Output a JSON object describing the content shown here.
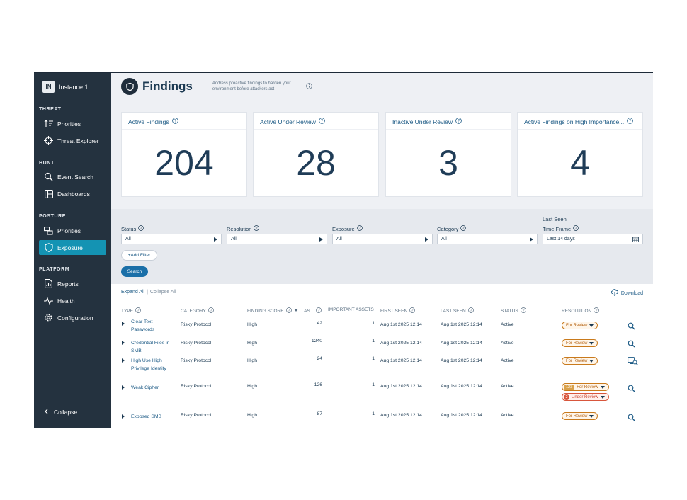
{
  "instance": {
    "badge": "IN",
    "name": "Instance 1"
  },
  "sidebar": {
    "sections": [
      {
        "title": "THREAT",
        "items": [
          {
            "label": "Priorities",
            "icon": "sort-priorities-icon"
          },
          {
            "label": "Threat Explorer",
            "icon": "crosshair-icon"
          }
        ]
      },
      {
        "title": "HUNT",
        "items": [
          {
            "label": "Event Search",
            "icon": "search-icon"
          },
          {
            "label": "Dashboards",
            "icon": "dashboard-icon"
          }
        ]
      },
      {
        "title": "POSTURE",
        "items": [
          {
            "label": "Priorities",
            "icon": "posture-priorities-icon"
          },
          {
            "label": "Exposure",
            "icon": "shield-icon",
            "active": true
          }
        ]
      },
      {
        "title": "PLATFORM",
        "items": [
          {
            "label": "Reports",
            "icon": "report-icon"
          },
          {
            "label": "Health",
            "icon": "health-icon"
          },
          {
            "label": "Configuration",
            "icon": "gear-icon"
          }
        ]
      }
    ],
    "collapse_label": "Collapse"
  },
  "header": {
    "title": "Findings",
    "subtitle": "Address proactive findings to harden your environment before attackers act"
  },
  "cards": [
    {
      "title": "Active Findings",
      "value": "204"
    },
    {
      "title": "Active Under Review",
      "value": "28"
    },
    {
      "title": "Inactive Under Review",
      "value": "3"
    },
    {
      "title": "Active Findings on High Importance...",
      "value": "4"
    }
  ],
  "filters": {
    "status": {
      "label": "Status",
      "value": "All"
    },
    "resolution": {
      "label": "Resolution",
      "value": "All"
    },
    "exposure": {
      "label": "Exposure",
      "value": "All"
    },
    "category": {
      "label": "Category",
      "value": "All"
    },
    "last_seen": {
      "label_top": "Last Seen",
      "label": "Time Frame",
      "value": "Last 14 days"
    },
    "add_filter": "+Add Filter",
    "search": "Search"
  },
  "toolbar": {
    "expand_all": "Expand All",
    "separator": "|",
    "collapse_all": "Collapse All",
    "download": "Download"
  },
  "table": {
    "columns": [
      "TYPE",
      "CATEGORY",
      "FINDING SCORE",
      "AS...",
      "IMPORTANT ASSETS",
      "FIRST SEEN",
      "LAST SEEN",
      "STATUS",
      "RESOLUTION"
    ],
    "rows": [
      {
        "type": "Clear Text Passwords",
        "category": "Risky Protocol",
        "score": "High",
        "assets": "42",
        "important": "1",
        "first_seen": "Aug 1st 2025 12:14",
        "last_seen": "Aug 1st 2025 12:14",
        "status": "Active",
        "resolution": "For Review"
      },
      {
        "type": "Credential Files in SMB",
        "category": "Risky Protocol",
        "score": "High",
        "assets": "1240",
        "important": "1",
        "first_seen": "Aug 1st 2025 12:14",
        "last_seen": "Aug 1st 2025 12:14",
        "status": "Active",
        "resolution": "For Review"
      },
      {
        "type": "High Use High Privilege Identity",
        "category": "Risky Protocol",
        "score": "High",
        "assets": "24",
        "important": "1",
        "first_seen": "Aug 1st 2025 12:14",
        "last_seen": "Aug 1st 2025 12:14",
        "status": "Active",
        "resolution": "For Review"
      },
      {
        "type": "Weak Cipher",
        "category": "Risky Protocol",
        "score": "High",
        "assets": "126",
        "important": "1",
        "first_seen": "Aug 1st 2025 12:14",
        "last_seen": "Aug 1st 2025 12:14",
        "status": "Active",
        "resolution": "For Review",
        "resolution_count": "123",
        "resolution2": "Under Review",
        "resolution2_count": "2"
      },
      {
        "type": "Exposed SMB",
        "category": "Risky Protocol",
        "score": "High",
        "assets": "87",
        "important": "1",
        "first_seen": "Aug 1st 2025 12:14",
        "last_seen": "Aug 1st 2025 12:14",
        "status": "Active",
        "resolution": "For Review"
      }
    ]
  },
  "colors": {
    "sidebar_bg": "#24323f",
    "accent": "#1493b3",
    "review_orange": "#c97a1c",
    "under_review_red": "#d8563c"
  }
}
